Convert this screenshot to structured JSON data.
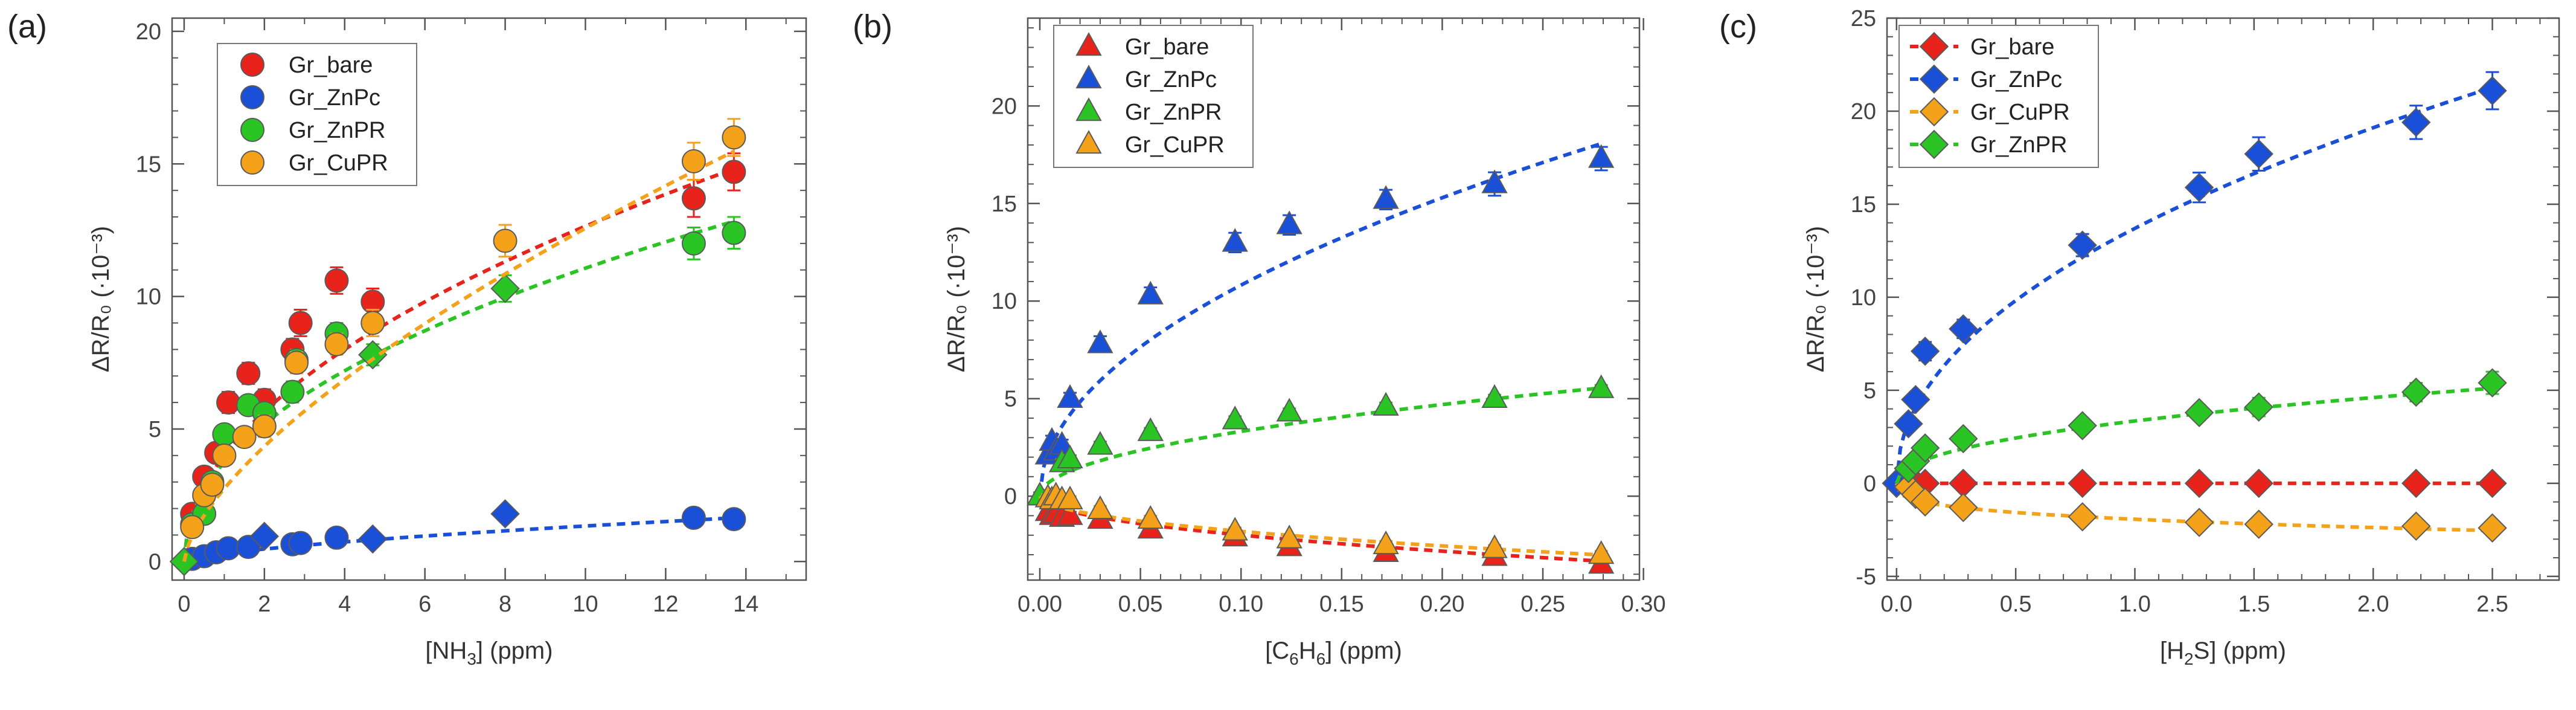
{
  "chart_data": [
    {
      "panel": "(a)",
      "type": "scatter",
      "xlabel_main": "[NH",
      "xlabel_sub": "3",
      "xlabel_end": "] (ppm)",
      "ylabel": "ΔR/R₀ (·10⁻³)",
      "xlim": [
        -0.3,
        15.5
      ],
      "ylim": [
        -0.7,
        20.5
      ],
      "xticks": [
        0,
        2,
        4,
        6,
        8,
        10,
        12,
        14
      ],
      "yticks": [
        0,
        5,
        10,
        15,
        20
      ],
      "xtick_labels": [
        "0",
        "2",
        "4",
        "6",
        "8",
        "10",
        "12",
        "14"
      ],
      "ytick_labels": [
        "0",
        "5",
        "10",
        "15",
        "20"
      ],
      "minor_x": 1,
      "minor_y": 1,
      "legend": {
        "position": "top-left",
        "entries": [
          "Gr_bare",
          "Gr_ZnPc",
          "Gr_ZnPR",
          "Gr_CuPR"
        ]
      },
      "series": [
        {
          "name": "Gr_bare",
          "color": "#e8231c",
          "marker": "circle",
          "x": [
            0.2,
            0.5,
            0.8,
            1.1,
            1.6,
            2.0,
            2.7,
            2.9,
            3.8,
            4.7,
            12.7,
            13.7
          ],
          "y": [
            1.8,
            3.2,
            4.1,
            6.0,
            7.1,
            6.1,
            8.0,
            9.0,
            10.6,
            9.8,
            13.7,
            14.7
          ],
          "err": [
            0.3,
            0.3,
            0.3,
            0.4,
            0.4,
            0.4,
            0.4,
            0.5,
            0.5,
            0.5,
            0.7,
            0.7
          ],
          "fit": {
            "a": 4.0,
            "b": 0.5
          }
        },
        {
          "name": "Gr_ZnPc",
          "color": "#1a4fd8",
          "marker": "circle",
          "x": [
            0.2,
            0.5,
            0.8,
            1.1,
            1.6,
            2.0,
            2.7,
            2.9,
            3.8,
            4.7,
            8.0,
            12.7,
            13.7
          ],
          "y": [
            0.1,
            0.2,
            0.35,
            0.5,
            0.55,
            0.95,
            0.65,
            0.7,
            0.9,
            0.85,
            1.8,
            1.65,
            1.6
          ],
          "markers": [
            "circle",
            "circle",
            "circle",
            "circle",
            "circle",
            "diamond",
            "circle",
            "circle",
            "circle",
            "diamond",
            "diamond",
            "circle",
            "circle"
          ],
          "err": [
            0.1,
            0.1,
            0.1,
            0.1,
            0.1,
            0.1,
            0.1,
            0.1,
            0.1,
            0.1,
            0.1,
            0.1,
            0.1
          ],
          "fit": {
            "a": 0.3,
            "b": 0.65
          }
        },
        {
          "name": "Gr_ZnPR",
          "color": "#2bc425",
          "marker": "circle",
          "x": [
            0.0,
            0.2,
            0.5,
            0.7,
            1.0,
            1.6,
            2.0,
            2.7,
            2.8,
            3.8,
            4.7,
            8.0,
            12.7,
            13.7
          ],
          "y": [
            0.0,
            1.4,
            1.8,
            3.0,
            4.8,
            5.9,
            5.6,
            6.4,
            7.6,
            8.6,
            7.8,
            10.3,
            12.0,
            12.4
          ],
          "markers": [
            "diamond",
            "circle",
            "circle",
            "circle",
            "circle",
            "circle",
            "circle",
            "circle",
            "circle",
            "circle",
            "diamond",
            "diamond",
            "circle",
            "circle"
          ],
          "err": [
            0.2,
            0.3,
            0.3,
            0.3,
            0.3,
            0.3,
            0.3,
            0.4,
            0.4,
            0.4,
            0.4,
            0.5,
            0.6,
            0.6
          ],
          "fit": {
            "a": 3.75,
            "b": 0.47
          }
        },
        {
          "name": "Gr_CuPR",
          "color": "#f5a21b",
          "marker": "circle",
          "x": [
            0.2,
            0.5,
            0.7,
            1.0,
            1.5,
            2.0,
            2.8,
            3.8,
            4.7,
            8.0,
            12.7,
            13.7
          ],
          "y": [
            1.3,
            2.5,
            2.9,
            4.0,
            4.7,
            5.1,
            7.5,
            8.2,
            9.0,
            12.1,
            15.1,
            16.0
          ],
          "err": [
            0.3,
            0.3,
            0.3,
            0.3,
            0.3,
            0.4,
            0.4,
            0.4,
            0.5,
            0.6,
            0.7,
            0.7
          ],
          "fit": {
            "a": 2.75,
            "b": 0.66
          }
        }
      ]
    },
    {
      "panel": "(b)",
      "type": "scatter",
      "xlabel_main": "[C",
      "xlabel_sub": "6",
      "xlabel_mid": "H",
      "xlabel_sub2": "6",
      "xlabel_end": "] (ppm)",
      "ylabel": "ΔR/R₀ (·10⁻³)",
      "xlim": [
        -0.006,
        0.298
      ],
      "ylim": [
        -4.3,
        24.5
      ],
      "xticks": [
        0,
        0.05,
        0.1,
        0.15,
        0.2,
        0.25,
        0.3
      ],
      "yticks": [
        0,
        5,
        10,
        15,
        20
      ],
      "xtick_labels": [
        "0.00",
        "0.05",
        "0.10",
        "0.15",
        "0.20",
        "0.25",
        "0.30"
      ],
      "ytick_labels": [
        "0",
        "5",
        "10",
        "15",
        "20"
      ],
      "minor_x": 0.01,
      "minor_y": 1,
      "legend": {
        "position": "top-left",
        "entries": [
          "Gr_bare",
          "Gr_ZnPc",
          "Gr_ZnPR",
          "Gr_CuPR"
        ]
      },
      "series": [
        {
          "name": "Gr_bare",
          "color": "#e8231c",
          "marker": "triangle",
          "x": [
            0.004,
            0.006,
            0.008,
            0.011,
            0.015,
            0.03,
            0.055,
            0.097,
            0.124,
            0.172,
            0.226,
            0.279
          ],
          "y": [
            -0.8,
            -1.0,
            -0.9,
            -1.1,
            -1.0,
            -1.2,
            -1.7,
            -2.1,
            -2.6,
            -2.9,
            -3.1,
            -3.5
          ],
          "err": [
            0.2,
            0.2,
            0.2,
            0.2,
            0.2,
            0.2,
            0.2,
            0.2,
            0.2,
            0.2,
            0.2,
            0.2
          ],
          "fit": {
            "a": -6.3,
            "b": 0.5
          }
        },
        {
          "name": "Gr_ZnPc",
          "color": "#1a4fd8",
          "marker": "triangle",
          "x": [
            0.0,
            0.004,
            0.006,
            0.008,
            0.011,
            0.015,
            0.03,
            0.055,
            0.097,
            0.124,
            0.172,
            0.226,
            0.279
          ],
          "y": [
            0.0,
            2.1,
            2.8,
            2.3,
            2.6,
            5.0,
            7.8,
            10.3,
            13.0,
            13.9,
            15.2,
            16.0,
            17.3
          ],
          "err": [
            0.2,
            0.3,
            0.3,
            0.3,
            0.3,
            0.3,
            0.4,
            0.4,
            0.5,
            0.5,
            0.5,
            0.6,
            0.6
          ],
          "fit": {
            "a": 34.2,
            "b": 0.5
          }
        },
        {
          "name": "Gr_ZnPR",
          "color": "#2bc425",
          "marker": "triangle",
          "x": [
            0.0,
            0.011,
            0.015,
            0.03,
            0.055,
            0.097,
            0.124,
            0.172,
            0.226,
            0.279
          ],
          "y": [
            0.0,
            1.7,
            1.9,
            2.6,
            3.3,
            3.9,
            4.3,
            4.6,
            5.0,
            5.5
          ],
          "err": [
            0.2,
            0.2,
            0.2,
            0.2,
            0.2,
            0.2,
            0.2,
            0.2,
            0.2,
            0.2
          ],
          "fit": {
            "a": 10.5,
            "b": 0.5
          }
        },
        {
          "name": "Gr_CuPR",
          "color": "#f5a21b",
          "marker": "triangle",
          "x": [
            0.004,
            0.006,
            0.008,
            0.011,
            0.015,
            0.03,
            0.055,
            0.097,
            0.124,
            0.172,
            0.226,
            0.279
          ],
          "y": [
            -0.1,
            -0.2,
            0.0,
            -0.2,
            -0.2,
            -0.7,
            -1.2,
            -1.8,
            -2.2,
            -2.5,
            -2.7,
            -3.0
          ],
          "err": [
            0.2,
            0.2,
            0.2,
            0.2,
            0.2,
            0.2,
            0.2,
            0.2,
            0.2,
            0.2,
            0.2,
            0.2
          ],
          "fit": {
            "a": -5.7,
            "b": 0.5
          }
        }
      ]
    },
    {
      "panel": "(c)",
      "type": "scatter",
      "xlabel_main": "[H",
      "xlabel_sub": "2",
      "xlabel_end": "S] (ppm)",
      "ylabel": "ΔR/R₀ (·10⁻³)",
      "xlim": [
        -0.04,
        2.78
      ],
      "ylim": [
        -5.2,
        25.0
      ],
      "xticks": [
        0,
        0.5,
        1.0,
        1.5,
        2.0,
        2.5
      ],
      "yticks": [
        -5,
        0,
        5,
        10,
        15,
        20,
        25
      ],
      "xtick_labels": [
        "0.0",
        "0.5",
        "1.0",
        "1.5",
        "2.0",
        "2.5"
      ],
      "ytick_labels": [
        "-5",
        "0",
        "5",
        "10",
        "15",
        "20",
        "25"
      ],
      "minor_x": 0.1,
      "minor_y": 1,
      "legend": {
        "position": "top-left",
        "entries": [
          "Gr_bare",
          "Gr_ZnPc",
          "Gr_CuPR",
          "Gr_ZnPR"
        ]
      },
      "series": [
        {
          "name": "Gr_bare",
          "color": "#e8231c",
          "marker": "diamond",
          "x": [
            0.0,
            0.05,
            0.08,
            0.12,
            0.28,
            0.78,
            1.27,
            1.52,
            2.18,
            2.5
          ],
          "y": [
            0.0,
            0.0,
            0.0,
            0.0,
            0.0,
            0.0,
            0.0,
            0.0,
            0.0,
            0.0
          ],
          "err": [
            0,
            0,
            0,
            0,
            0,
            0,
            0,
            0,
            0,
            0
          ],
          "fit": {
            "a": 0.0,
            "b": 1.0
          }
        },
        {
          "name": "Gr_ZnPc",
          "color": "#1a4fd8",
          "marker": "diamond",
          "x": [
            0.0,
            0.05,
            0.08,
            0.12,
            0.28,
            0.78,
            1.27,
            1.52,
            2.18,
            2.5
          ],
          "y": [
            0.0,
            3.2,
            4.5,
            7.1,
            8.3,
            12.8,
            15.9,
            17.7,
            19.4,
            21.1
          ],
          "err": [
            0.3,
            0.4,
            0.4,
            0.5,
            0.5,
            0.6,
            0.8,
            0.9,
            0.9,
            1.0
          ],
          "fit": {
            "a": 13.7,
            "b": 0.48
          }
        },
        {
          "name": "Gr_CuPR",
          "color": "#f5a21b",
          "marker": "diamond",
          "x": [
            0.05,
            0.08,
            0.12,
            0.28,
            0.78,
            1.27,
            1.52,
            2.18,
            2.5
          ],
          "y": [
            -0.2,
            -0.6,
            -1.0,
            -1.3,
            -1.8,
            -2.1,
            -2.2,
            -2.3,
            -2.4
          ],
          "err": [
            0.1,
            0.1,
            0.1,
            0.1,
            0.1,
            0.1,
            0.1,
            0.1,
            0.1
          ],
          "fit": {
            "a": -1.93,
            "b": 0.3
          }
        },
        {
          "name": "Gr_ZnPR",
          "color": "#2bc425",
          "marker": "diamond",
          "x": [
            0.05,
            0.08,
            0.12,
            0.28,
            0.78,
            1.27,
            1.52,
            2.18,
            2.5
          ],
          "y": [
            0.8,
            1.2,
            1.9,
            2.4,
            3.1,
            3.8,
            4.1,
            4.9,
            5.4
          ],
          "err": [
            0.3,
            0.3,
            0.3,
            0.3,
            0.4,
            0.4,
            0.5,
            0.5,
            0.6
          ],
          "fit": {
            "a": 3.35,
            "b": 0.46
          }
        }
      ]
    }
  ]
}
